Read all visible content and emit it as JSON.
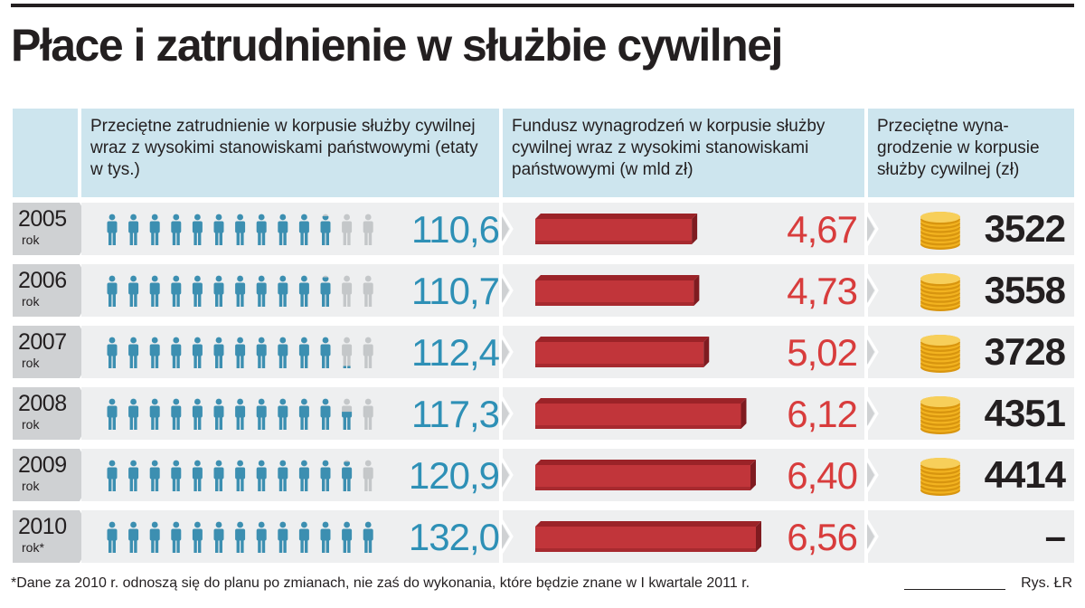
{
  "title": "Płace i zatrudnienie w służbie cywilnej",
  "headers": {
    "employment": "Przeciętne zatrudnienie w korpusie służby cywilnej wraz z wysokimi stanowiskami państwowymi (etaty w tys.)",
    "fund": "Fundusz wynagrodzeń w korpusie służby cywilnej wraz z wysokimi stanowiskami państwowymi (w mld zł)",
    "salary": "Przeciętne wyna-grodzenie w korpusie służby cywilnej (zł)"
  },
  "rows": [
    {
      "year": "2005",
      "year_suffix": "rok",
      "employment": "110,6",
      "fund": "4,67",
      "salary": "3522"
    },
    {
      "year": "2006",
      "year_suffix": "rok",
      "employment": "110,7",
      "fund": "4,73",
      "salary": "3558"
    },
    {
      "year": "2007",
      "year_suffix": "rok",
      "employment": "112,4",
      "fund": "5,02",
      "salary": "3728"
    },
    {
      "year": "2008",
      "year_suffix": "rok",
      "employment": "117,3",
      "fund": "6,12",
      "salary": "4351"
    },
    {
      "year": "2009",
      "year_suffix": "rok",
      "employment": "120,9",
      "fund": "6,40",
      "salary": "4414"
    },
    {
      "year": "2010",
      "year_suffix": "rok*",
      "employment": "132,0",
      "fund": "6,56",
      "salary": "–"
    }
  ],
  "footnote": "*Dane za 2010 r. odnoszą się do planu po zmianach, nie zaś do wykonania, które będzie znane w I kwartale 2011 r.",
  "credit": "Rys. ŁR",
  "colors": {
    "people_blue": "#3c8fb1",
    "people_grey": "#c4c7c9",
    "bar_red": "#c1353a",
    "employment_text": "#2e90b6",
    "fund_text": "#d83c3c",
    "coin_gold": "#f2b320",
    "header_bg": "#cde5ee",
    "row_bg": "#eeeff0"
  },
  "icons": {
    "person": "person-icon",
    "coins": "coin-stack-icon",
    "chevron": "chevron-right-icon"
  },
  "chart_data": {
    "type": "table",
    "categories": [
      "2005",
      "2006",
      "2007",
      "2008",
      "2009",
      "2010"
    ],
    "series": [
      {
        "name": "Przeciętne zatrudnienie w korpusie służby cywilnej wraz z wysokimi stanowiskami państwowymi (etaty w tys.)",
        "values": [
          110.6,
          110.7,
          112.4,
          117.3,
          120.9,
          132.0
        ]
      },
      {
        "name": "Fundusz wynagrodzeń w korpusie służby cywilnej wraz z wysokimi stanowiskami państwowymi (w mld zł)",
        "values": [
          4.67,
          4.73,
          5.02,
          6.12,
          6.4,
          6.56
        ]
      },
      {
        "name": "Przeciętne wyna-grodzenie w korpusie służby cywilnej (zł)",
        "values": [
          3522,
          3558,
          3728,
          4351,
          4414,
          null
        ]
      }
    ],
    "icons_total": 13,
    "icons_scale_max": 132.0,
    "bar_scale_max": 6.56
  }
}
